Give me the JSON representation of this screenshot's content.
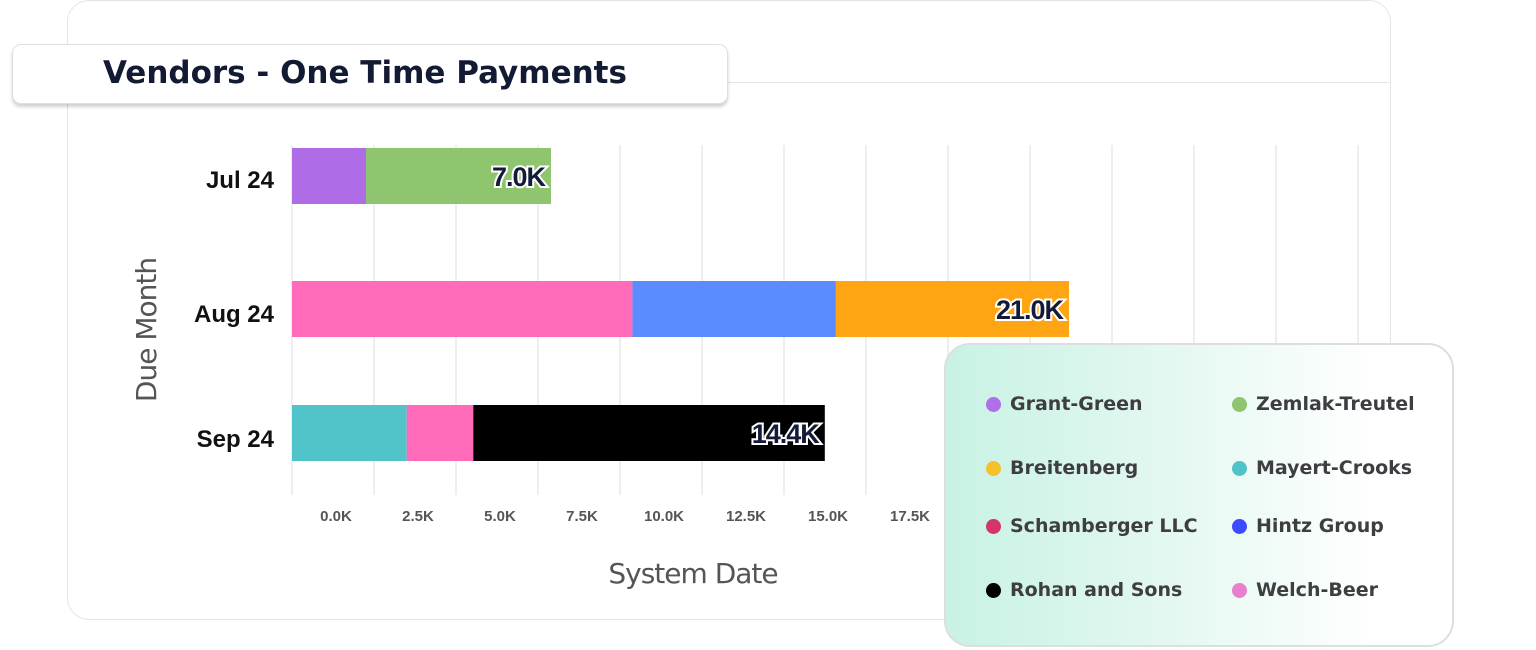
{
  "title": "Vendors - One Time Payments",
  "chart_data": {
    "type": "bar",
    "orientation": "horizontal",
    "stacked": true,
    "xlabel": "System Date",
    "ylabel": "Due Month",
    "categories": [
      "Jul 24",
      "Aug 24",
      "Sep 24"
    ],
    "x_tick_labels": [
      "0.0K",
      "2.5K",
      "5.0K",
      "7.5K",
      "10.0K",
      "12.5K",
      "15.0K",
      "17.5K"
    ],
    "grid": "vertical",
    "legend_position": "bottom-right",
    "totals": [
      "7.0K",
      "21.0K",
      "14.4K"
    ],
    "stacks": [
      [
        {
          "series": "Grant-Green",
          "value": 2.0
        },
        {
          "series": "Zemlak-Treutel",
          "value": 5.0
        }
      ],
      [
        {
          "series": "Welch-Beer",
          "value": 9.2
        },
        {
          "series": "Hintz Group",
          "value": 5.5
        },
        {
          "series": "Breitenberg",
          "value": 6.3
        }
      ],
      [
        {
          "series": "Mayert-Crooks",
          "value": 3.1
        },
        {
          "series": "Welch-Beer",
          "value": 1.8
        },
        {
          "series": "Rohan and Sons",
          "value": 9.5
        }
      ]
    ],
    "value_unit": "K",
    "series": [
      {
        "name": "Grant-Green",
        "color": "#b06ee8",
        "bar_color": "#ae6de6"
      },
      {
        "name": "Zemlak-Treutel",
        "color": "#8fc56e",
        "bar_color": "#90c56f"
      },
      {
        "name": "Breitenberg",
        "color": "#f5c12a",
        "bar_color": "#ffa514"
      },
      {
        "name": "Mayert-Crooks",
        "color": "#4fc4c8",
        "bar_color": "#50c4c8"
      },
      {
        "name": "Schamberger LLC",
        "color": "#d6336c",
        "bar_color": "#d6336c"
      },
      {
        "name": "Hintz Group",
        "color": "#3d4bff",
        "bar_color": "#5a8cff"
      },
      {
        "name": "Rohan and Sons",
        "color": "#000000",
        "bar_color": "#000000"
      },
      {
        "name": "Welch-Beer",
        "color": "#e87fcf",
        "bar_color": "#ff6bb8"
      }
    ]
  }
}
